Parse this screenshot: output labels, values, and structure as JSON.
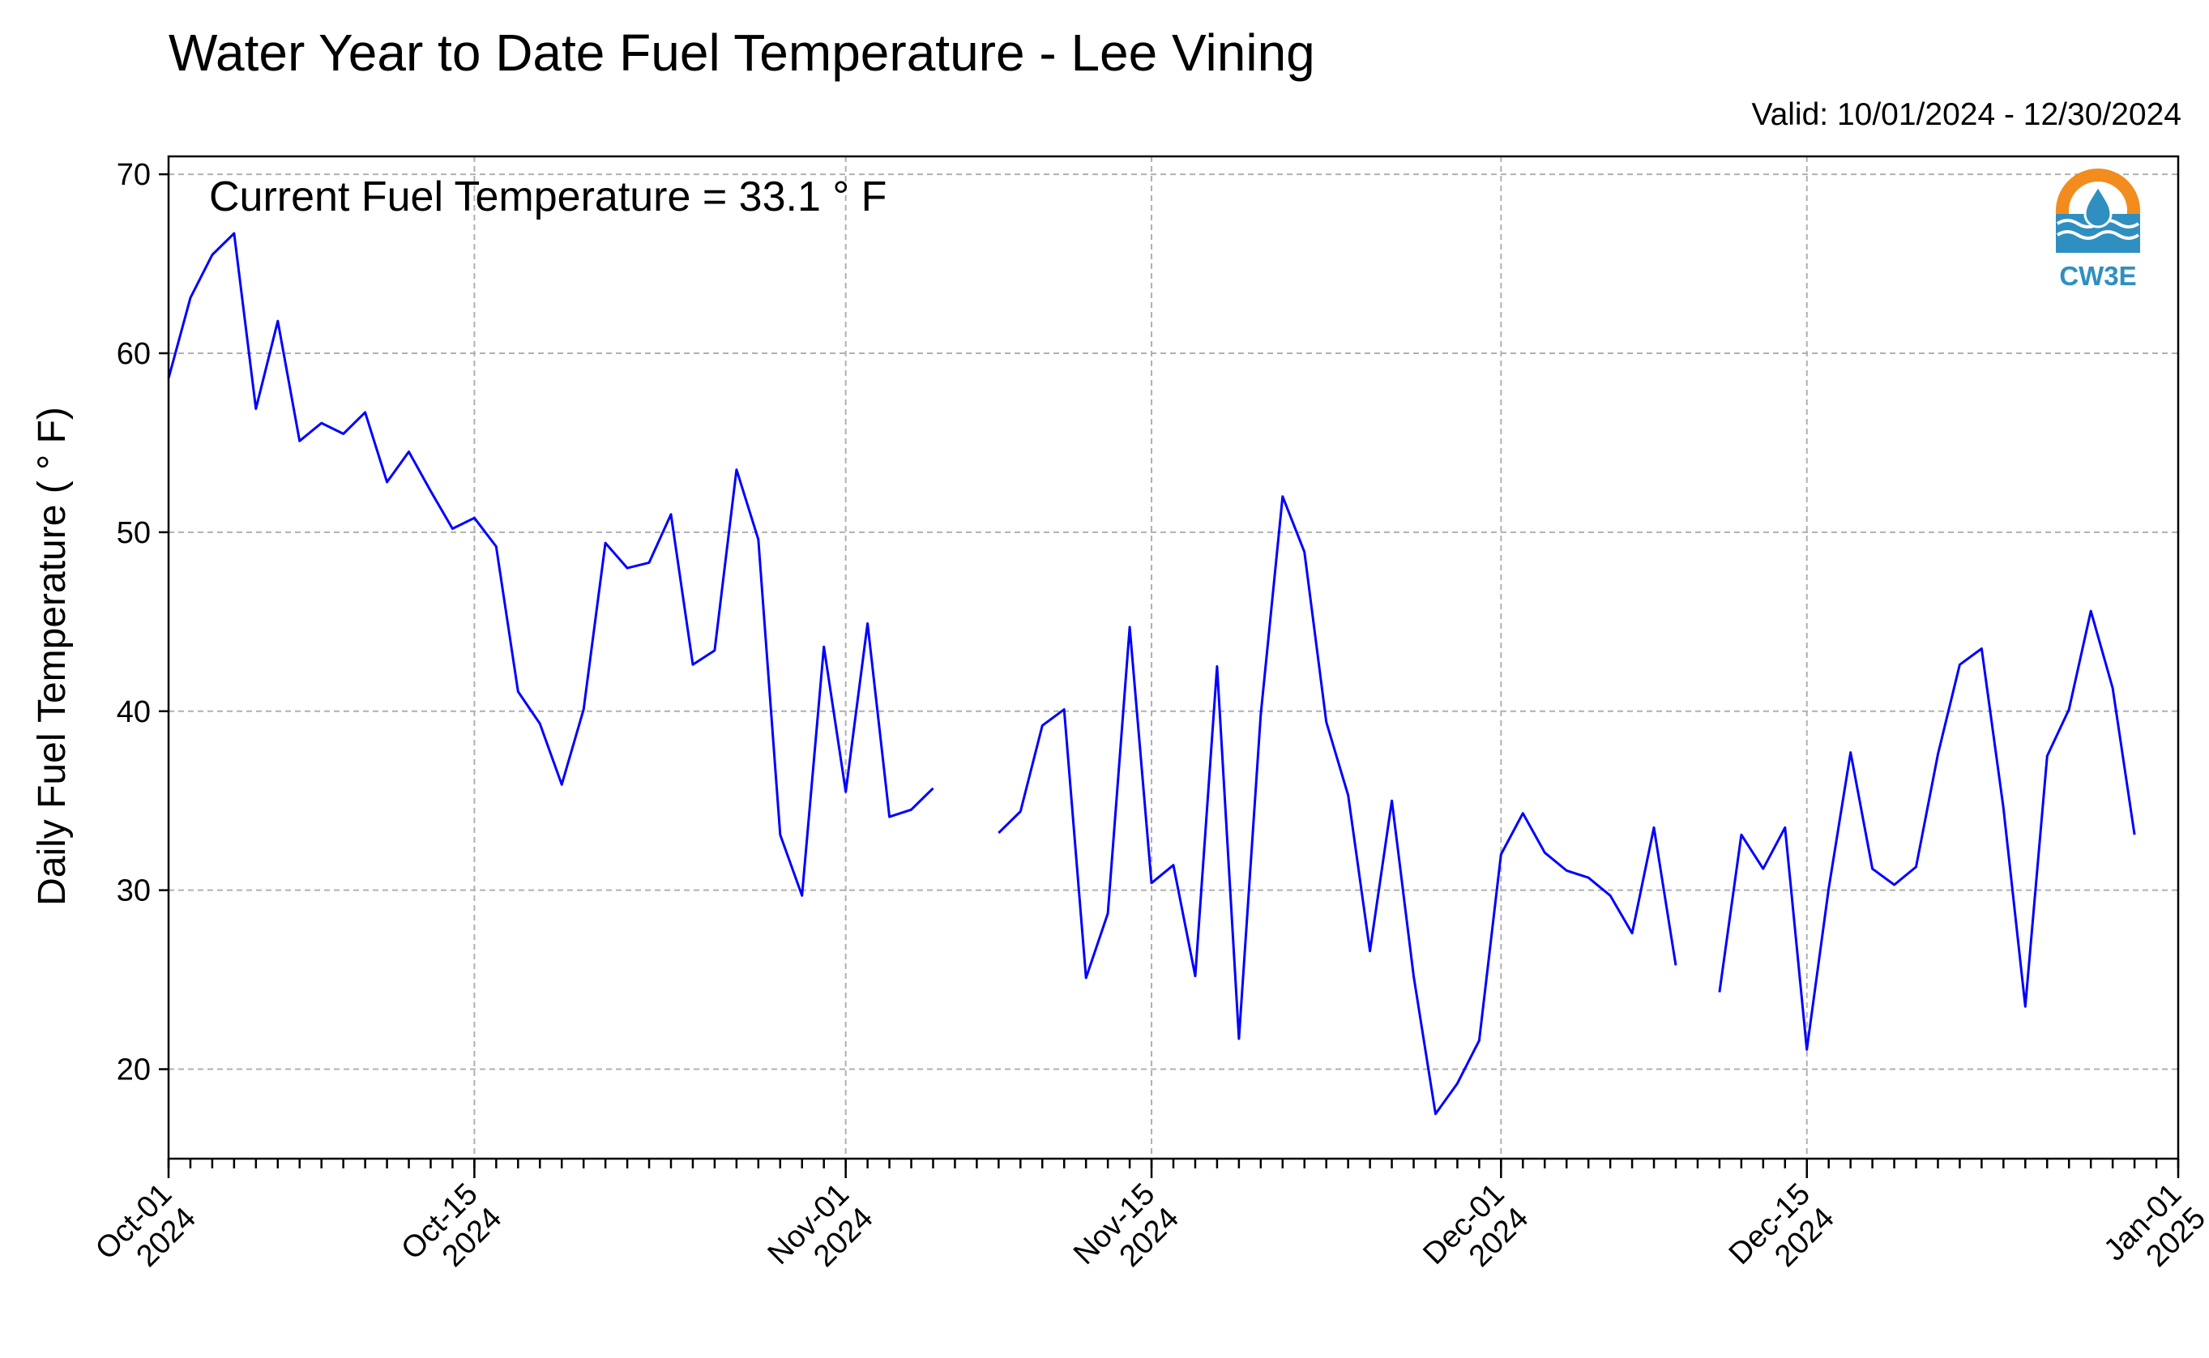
{
  "header": {
    "title": "Water Year to Date Fuel Temperature - Lee Vining",
    "valid": "Valid: 10/01/2024 - 12/30/2024"
  },
  "logo": {
    "icon": "cw3e-logo-icon",
    "text": "CW3E",
    "colors": {
      "sun": "#f28c1e",
      "water": "#2f8fc1"
    }
  },
  "chart_data": {
    "type": "line",
    "title": "Water Year to Date Fuel Temperature - Lee Vining",
    "ylabel": "Daily Fuel Temperature ( ° F)",
    "xlabel": "",
    "annotation": "Current Fuel Temperature = 33.1  ° F",
    "ylim": [
      15,
      71
    ],
    "xlim": [
      "2024-10-01",
      "2025-01-01"
    ],
    "yticks": [
      20,
      30,
      40,
      50,
      60,
      70
    ],
    "xticks": [
      {
        "date": "2024-10-01",
        "label": [
          "Oct-01",
          "2024"
        ]
      },
      {
        "date": "2024-10-15",
        "label": [
          "Oct-15",
          "2024"
        ]
      },
      {
        "date": "2024-11-01",
        "label": [
          "Nov-01",
          "2024"
        ]
      },
      {
        "date": "2024-11-15",
        "label": [
          "Nov-15",
          "2024"
        ]
      },
      {
        "date": "2024-12-01",
        "label": [
          "Dec-01",
          "2024"
        ]
      },
      {
        "date": "2024-12-15",
        "label": [
          "Dec-15",
          "2024"
        ]
      },
      {
        "date": "2025-01-01",
        "label": [
          "Jan-01",
          "2025"
        ]
      }
    ],
    "grid": true,
    "line_color": "#0000ff",
    "series": [
      {
        "x": [
          "2024-10-01",
          "2024-10-02",
          "2024-10-03",
          "2024-10-04",
          "2024-10-05",
          "2024-10-06",
          "2024-10-07",
          "2024-10-08",
          "2024-10-09",
          "2024-10-10",
          "2024-10-11",
          "2024-10-12",
          "2024-10-13",
          "2024-10-14",
          "2024-10-15",
          "2024-10-16",
          "2024-10-17",
          "2024-10-18",
          "2024-10-19",
          "2024-10-20",
          "2024-10-21",
          "2024-10-22",
          "2024-10-23",
          "2024-10-24",
          "2024-10-25",
          "2024-10-26",
          "2024-10-27",
          "2024-10-28",
          "2024-10-29",
          "2024-10-30",
          "2024-10-31",
          "2024-11-01",
          "2024-11-02",
          "2024-11-03",
          "2024-11-04",
          "2024-11-05",
          "2024-11-06",
          "2024-11-07",
          "2024-11-08",
          "2024-11-09",
          "2024-11-10",
          "2024-11-11",
          "2024-11-12",
          "2024-11-13",
          "2024-11-14",
          "2024-11-15",
          "2024-11-16",
          "2024-11-17",
          "2024-11-18",
          "2024-11-19",
          "2024-11-20",
          "2024-11-21",
          "2024-11-22",
          "2024-11-23",
          "2024-11-24",
          "2024-11-25",
          "2024-11-26",
          "2024-11-27",
          "2024-11-28",
          "2024-11-29",
          "2024-11-30",
          "2024-12-01",
          "2024-12-02",
          "2024-12-03",
          "2024-12-04",
          "2024-12-05",
          "2024-12-06",
          "2024-12-07",
          "2024-12-08",
          "2024-12-09",
          "2024-12-10",
          "2024-12-11",
          "2024-12-12",
          "2024-12-13",
          "2024-12-14",
          "2024-12-15",
          "2024-12-16",
          "2024-12-17",
          "2024-12-18",
          "2024-12-19",
          "2024-12-20",
          "2024-12-21",
          "2024-12-22",
          "2024-12-23",
          "2024-12-24",
          "2024-12-25",
          "2024-12-26",
          "2024-12-27",
          "2024-12-28",
          "2024-12-29",
          "2024-12-30"
        ],
        "y": [
          58.6,
          63.1,
          65.5,
          66.7,
          56.9,
          61.8,
          55.1,
          56.1,
          55.5,
          56.7,
          52.8,
          54.5,
          52.3,
          50.2,
          50.8,
          49.2,
          41.1,
          39.3,
          35.9,
          40.1,
          49.4,
          48.0,
          48.3,
          51.0,
          42.6,
          43.4,
          53.5,
          49.6,
          33.1,
          29.7,
          43.6,
          35.5,
          44.9,
          34.1,
          34.5,
          35.7,
          null,
          null,
          33.2,
          34.4,
          39.2,
          40.1,
          25.1,
          28.7,
          44.7,
          30.4,
          31.4,
          25.2,
          42.5,
          21.7,
          39.8,
          52.0,
          48.9,
          39.4,
          35.3,
          26.6,
          35.0,
          25.2,
          17.5,
          19.2,
          21.6,
          32.0,
          34.3,
          32.1,
          31.1,
          30.7,
          29.7,
          27.6,
          33.5,
          25.8,
          null,
          24.3,
          33.1,
          31.2,
          33.5,
          21.1,
          30.1,
          37.7,
          31.2,
          30.3,
          31.3,
          37.6,
          42.6,
          43.5,
          34.6,
          23.5,
          37.5,
          40.1,
          45.6,
          41.3,
          33.1
        ]
      }
    ]
  }
}
